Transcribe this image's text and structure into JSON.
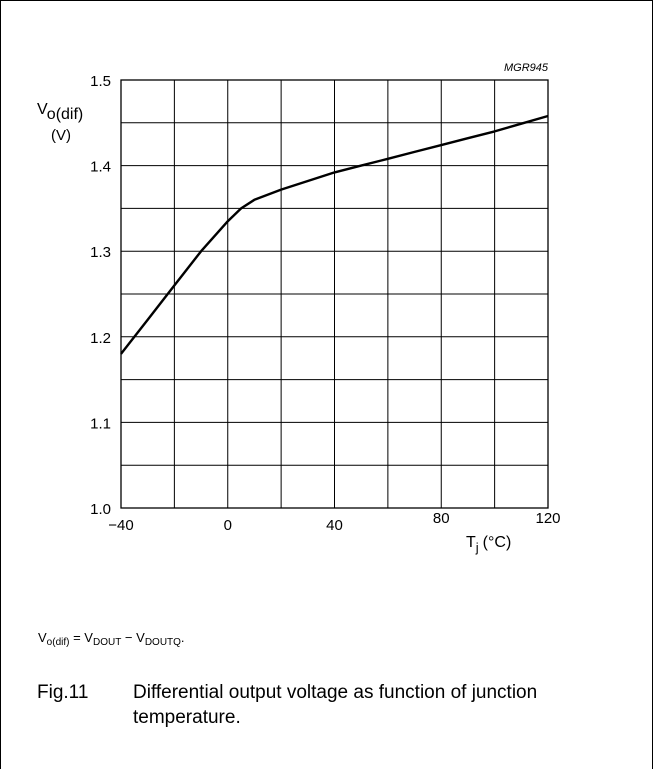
{
  "chart_data": {
    "type": "line",
    "code": "MGR945",
    "ylabel_main": "V",
    "ylabel_sub": "o(dif)",
    "ylabel_unit": "(V)",
    "xlabel_main": "T",
    "xlabel_sub": "j",
    "xlabel_unit": "(°C)",
    "xlim": [
      -40,
      120
    ],
    "ylim": [
      1.0,
      1.5
    ],
    "x_ticks": [
      "−40",
      "0",
      "40",
      "80",
      "120"
    ],
    "y_ticks": [
      "1.0",
      "1.1",
      "1.2",
      "1.3",
      "1.4",
      "1.5"
    ],
    "grid": true,
    "series": [
      {
        "x": [
          -40,
          -30,
          -20,
          -10,
          0,
          5,
          10,
          20,
          30,
          40,
          50,
          60,
          70,
          80,
          90,
          100,
          110,
          120
        ],
        "y": [
          1.18,
          1.22,
          1.26,
          1.3,
          1.335,
          1.35,
          1.36,
          1.372,
          1.382,
          1.392,
          1.4,
          1.408,
          1.416,
          1.424,
          1.432,
          1.44,
          1.449,
          1.458
        ]
      }
    ]
  },
  "formula": {
    "lhs_main": "V",
    "lhs_sub": "o(dif)",
    "eq": " = ",
    "t1_main": "V",
    "t1_sub": "DOUT",
    "minus": " − ",
    "t2_main": "V",
    "t2_sub": "DOUTQ",
    "end": "."
  },
  "caption": {
    "number": "Fig.11",
    "text": "Differential output voltage as function of junction temperature."
  }
}
